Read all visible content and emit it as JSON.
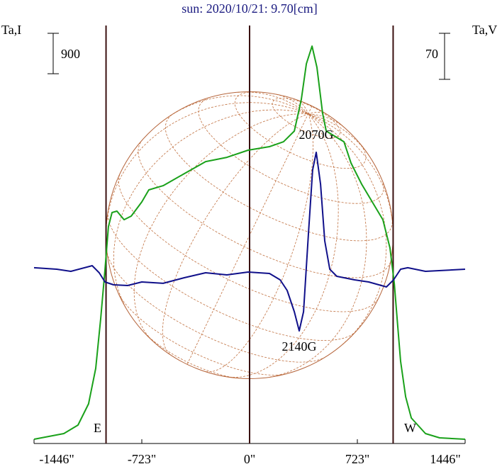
{
  "chart_data": {
    "type": "line",
    "title": "sun: 2020/10/21: 9.70[cm]",
    "ylabel": "Ta,I",
    "y2label": "Ta,V",
    "scale_bar": 900,
    "scale_bar2": 70,
    "xlim": [
      -1446,
      1446
    ],
    "xticks": [
      {
        "value": -1446,
        "label": "-1446\""
      },
      {
        "value": -723,
        "label": "-723\""
      },
      {
        "value": 0,
        "label": "0\""
      },
      {
        "value": 723,
        "label": "723\""
      },
      {
        "value": 1446,
        "label": "1446\""
      }
    ],
    "ylim": [
      0,
      9400
    ],
    "y2lim": [
      -265,
      377
    ],
    "limbs": [
      {
        "x": -963,
        "label": "E"
      },
      {
        "x": 963,
        "label": "W"
      }
    ],
    "annotations": [
      {
        "text": "2070G",
        "x": 447
      },
      {
        "text": "2140G",
        "x": 333
      }
    ],
    "series": [
      {
        "name": "I",
        "color": "#1aa11a",
        "x": [
          -1446,
          -1246,
          -1151,
          -1080,
          -1032,
          -999,
          -970,
          -947,
          -923,
          -890,
          -842,
          -794,
          -723,
          -676,
          -580,
          -438,
          -295,
          -152,
          -10,
          133,
          228,
          300,
          347,
          381,
          419,
          452,
          490,
          514,
          633,
          680,
          752,
          823,
          894,
          942,
          971,
          990,
          1013,
          1047,
          1085,
          1180,
          1275,
          1446
        ],
        "values": [
          95,
          221,
          410,
          883,
          1672,
          2776,
          3879,
          4826,
          5141,
          5173,
          4983,
          5062,
          5378,
          5646,
          5740,
          6008,
          6276,
          6371,
          6529,
          6608,
          6718,
          6955,
          7664,
          8453,
          8847,
          8374,
          7349,
          6955,
          6718,
          6245,
          5772,
          5378,
          4983,
          4353,
          3564,
          2776,
          1829,
          1041,
          568,
          221,
          126,
          95
        ]
      },
      {
        "name": "V",
        "color": "#10108a",
        "axis": "y2",
        "x": [
          -1446,
          -1294,
          -1199,
          -1056,
          -1009,
          -970,
          -913,
          -818,
          -723,
          -580,
          -438,
          -295,
          -152,
          -10,
          133,
          205,
          252,
          300,
          333,
          362,
          395,
          423,
          447,
          476,
          504,
          538,
          585,
          704,
          799,
          918,
          966,
          1013,
          1061,
          1180,
          1446
        ],
        "values": [
          2.2,
          0,
          -3.2,
          5.4,
          -5.4,
          -19.4,
          -23.7,
          -24.8,
          -19.4,
          -21.5,
          -12.9,
          -5.4,
          -8.6,
          -4.3,
          -6.5,
          -16.2,
          -32.3,
          -64.6,
          -93.7,
          -64.6,
          53.9,
          150.8,
          177.7,
          129.2,
          43.1,
          0,
          -10.8,
          -16.2,
          -19.4,
          -26.9,
          -16.2,
          0,
          2.2,
          -3.2,
          0
        ]
      }
    ]
  }
}
